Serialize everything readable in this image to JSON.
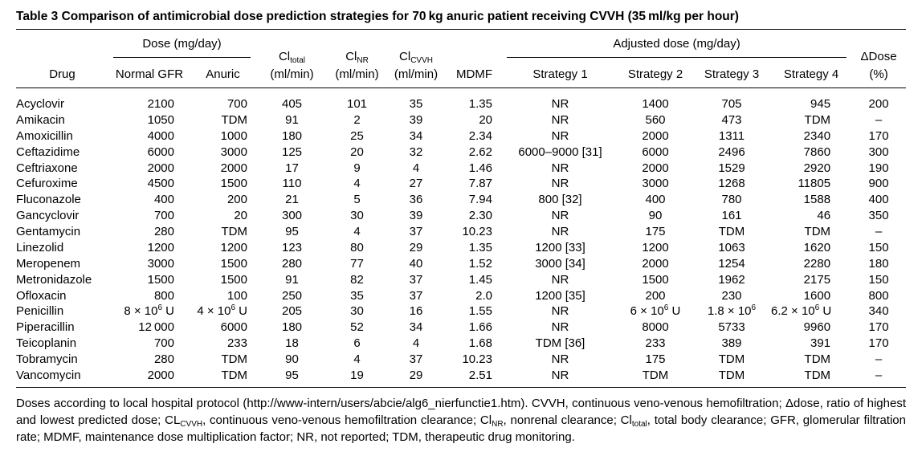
{
  "title": "Table 3 Comparison of antimicrobial dose prediction strategies for 70 kg anuric patient receiving CVVH (35 ml/kg per hour)",
  "table": {
    "header": {
      "dose_group": "Dose (mg/day)",
      "adjusted_group": "Adjusted dose (mg/day)",
      "columns": [
        {
          "label": "Drug"
        },
        {
          "label": "Normal GFR"
        },
        {
          "label": "Anuric"
        },
        {
          "label": [
            "Cl",
            {
              "sub": "total"
            }
          ],
          "unit": "(ml/min)"
        },
        {
          "label": [
            "Cl",
            {
              "sub": "NR"
            }
          ],
          "unit": "(ml/min)"
        },
        {
          "label": [
            "Cl",
            {
              "sub": "CVVH"
            }
          ],
          "unit": "(ml/min)"
        },
        {
          "label": "MDMF"
        },
        {
          "label": "Strategy 1"
        },
        {
          "label": "Strategy 2"
        },
        {
          "label": "Strategy 3"
        },
        {
          "label": "Strategy 4"
        },
        {
          "label": "ΔDose",
          "unit": "(%)"
        }
      ]
    },
    "rows": [
      [
        "Acyclovir",
        "2100",
        "700",
        "405",
        "101",
        "35",
        "1.35",
        "NR",
        "1400",
        "705",
        "945",
        "200"
      ],
      [
        "Amikacin",
        "1050",
        "TDM",
        "91",
        "2",
        "39",
        "20",
        "NR",
        "560",
        "473",
        "TDM",
        "–"
      ],
      [
        "Amoxicillin",
        "4000",
        "1000",
        "180",
        "25",
        "34",
        "2.34",
        "NR",
        "2000",
        "1311",
        "2340",
        "170"
      ],
      [
        "Ceftazidime",
        "6000",
        "3000",
        "125",
        "20",
        "32",
        "2.62",
        "6000–9000 [31]",
        "6000",
        "2496",
        "7860",
        "300"
      ],
      [
        "Ceftriaxone",
        "2000",
        "2000",
        "17",
        "9",
        "4",
        "1.46",
        "NR",
        "2000",
        "1529",
        "2920",
        "190"
      ],
      [
        "Cefuroxime",
        "4500",
        "1500",
        "110",
        "4",
        "27",
        "7.87",
        "NR",
        "3000",
        "1268",
        "11805",
        "900"
      ],
      [
        "Fluconazole",
        "400",
        "200",
        "21",
        "5",
        "36",
        "7.94",
        "800 [32]",
        "400",
        "780",
        "1588",
        "400"
      ],
      [
        "Gancyclovir",
        "700",
        "20",
        "300",
        "30",
        "39",
        "2.30",
        "NR",
        "90",
        "161",
        "46",
        "350"
      ],
      [
        "Gentamycin",
        "280",
        "TDM",
        "95",
        "4",
        "37",
        "10.23",
        "NR",
        "175",
        "TDM",
        "TDM",
        "–"
      ],
      [
        "Linezolid",
        "1200",
        "1200",
        "123",
        "80",
        "29",
        "1.35",
        "1200 [33]",
        "1200",
        "1063",
        "1620",
        "150"
      ],
      [
        "Meropenem",
        "3000",
        "1500",
        "280",
        "77",
        "40",
        "1.52",
        "3000 [34]",
        "2000",
        "1254",
        "2280",
        "180"
      ],
      [
        "Metronidazole",
        "1500",
        "1500",
        "91",
        "82",
        "37",
        "1.45",
        "NR",
        "1500",
        "1962",
        "2175",
        "150"
      ],
      [
        "Ofloxacin",
        "800",
        "100",
        "250",
        "35",
        "37",
        "2.0",
        "1200 [35]",
        "200",
        "230",
        "1600",
        "800"
      ],
      [
        "Penicillin",
        [
          "8 × 10",
          {
            "sup": "6"
          },
          " U"
        ],
        [
          "4 × 10",
          {
            "sup": "6"
          },
          " U"
        ],
        "205",
        "30",
        "16",
        "1.55",
        "NR",
        [
          "6 × 10",
          {
            "sup": "6"
          },
          " U"
        ],
        [
          "1.8 × 10",
          {
            "sup": "6"
          }
        ],
        [
          "6.2 × 10",
          {
            "sup": "6"
          },
          " U"
        ],
        "340"
      ],
      [
        "Piperacillin",
        "12 000",
        "6000",
        "180",
        "52",
        "34",
        "1.66",
        "NR",
        "8000",
        "5733",
        "9960",
        "170"
      ],
      [
        "Teicoplanin",
        "700",
        "233",
        "18",
        "6",
        "4",
        "1.68",
        "TDM [36]",
        "233",
        "389",
        "391",
        "170"
      ],
      [
        "Tobramycin",
        "280",
        "TDM",
        "90",
        "4",
        "37",
        "10.23",
        "NR",
        "175",
        "TDM",
        "TDM",
        "–"
      ],
      [
        "Vancomycin",
        "2000",
        "TDM",
        "95",
        "19",
        "29",
        "2.51",
        "NR",
        "TDM",
        "TDM",
        "TDM",
        "–"
      ]
    ]
  },
  "footnote": [
    "Doses according to local hospital protocol (http://www-intern/users/abcie/alg6_nierfunctie1.htm). CVVH, continuous veno-venous hemofiltration; Δdose, ratio of highest and lowest predicted dose; CL",
    {
      "sub": "CVVH"
    },
    ", continuous veno-venous hemofiltration clearance; Cl",
    {
      "sub": "NR"
    },
    ", nonrenal clearance; Cl",
    {
      "sub": "total"
    },
    ", total body clearance; GFR, glomerular filtration rate; MDMF, maintenance dose multiplication factor; NR, not reported; TDM, therapeutic drug monitoring."
  ]
}
